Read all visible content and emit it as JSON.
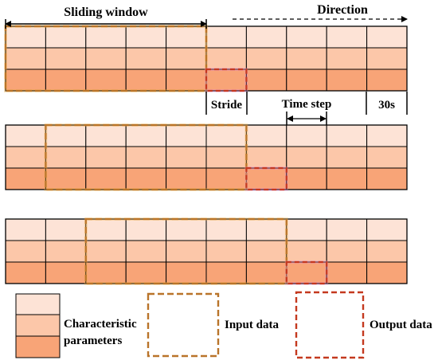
{
  "labels": {
    "sliding_window": "Sliding window",
    "direction": "Direction",
    "stride": "Stride",
    "time_step": "Time step",
    "interval": "30s",
    "characteristic_line1": "Characteristic",
    "characteristic_line2": "parameters",
    "input_data": "Input data",
    "output_data": "Output data"
  },
  "grid": {
    "rows": 3,
    "columns": 10,
    "row_colors": [
      "#fde3d6",
      "#fcc7a9",
      "#f8a477"
    ],
    "cell_border": "#000000"
  },
  "steps": [
    {
      "input_start_col": 0,
      "input_cols": 5,
      "output_col": 5,
      "output_row": 2
    },
    {
      "input_start_col": 1,
      "input_cols": 5,
      "output_col": 6,
      "output_row": 2
    },
    {
      "input_start_col": 2,
      "input_cols": 5,
      "output_col": 7,
      "output_row": 2
    }
  ],
  "colors": {
    "input_box": "#b9742a",
    "output_box": "#c4391f",
    "input_glow": "#f2b24a",
    "output_glow": "#ea8bd8"
  }
}
